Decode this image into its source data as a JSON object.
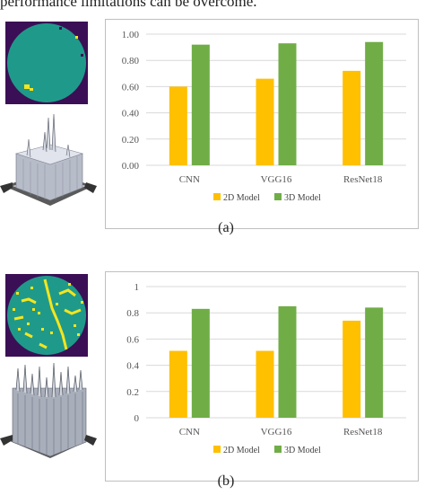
{
  "page": {
    "top_text": "performance limitations can be overcome."
  },
  "colors": {
    "model_2d": "#FFC000",
    "model_3d": "#70AD47",
    "wafer_background": "#3b0f55",
    "wafer_teal": "#1f9a8a",
    "wafer_yellow": "#f5e51e",
    "gridline": "#d9d9d9"
  },
  "figures": [
    {
      "id": "a",
      "caption": "(a)"
    },
    {
      "id": "b",
      "caption": "(b)"
    }
  ],
  "chart_data": [
    {
      "type": "bar",
      "categories": [
        "CNN",
        "VGG16",
        "ResNet18"
      ],
      "series": [
        {
          "name": "2D Model",
          "values": [
            0.6,
            0.66,
            0.72
          ]
        },
        {
          "name": "3D Model",
          "values": [
            0.92,
            0.93,
            0.94
          ]
        }
      ],
      "yticks": [
        "0.00",
        "0.20",
        "0.40",
        "0.60",
        "0.80",
        "1.00"
      ],
      "ylim": [
        0,
        1
      ],
      "grid": true,
      "legend": "bottom"
    },
    {
      "type": "bar",
      "categories": [
        "CNN",
        "VGG16",
        "ResNet18"
      ],
      "series": [
        {
          "name": "2D Model",
          "values": [
            0.51,
            0.51,
            0.74
          ]
        },
        {
          "name": "3D Model",
          "values": [
            0.83,
            0.85,
            0.84
          ]
        }
      ],
      "yticks": [
        "0",
        "0.2",
        "0.4",
        "0.6",
        "0.8",
        "1"
      ],
      "ylim": [
        0,
        1
      ],
      "grid": true,
      "legend": "bottom"
    }
  ]
}
